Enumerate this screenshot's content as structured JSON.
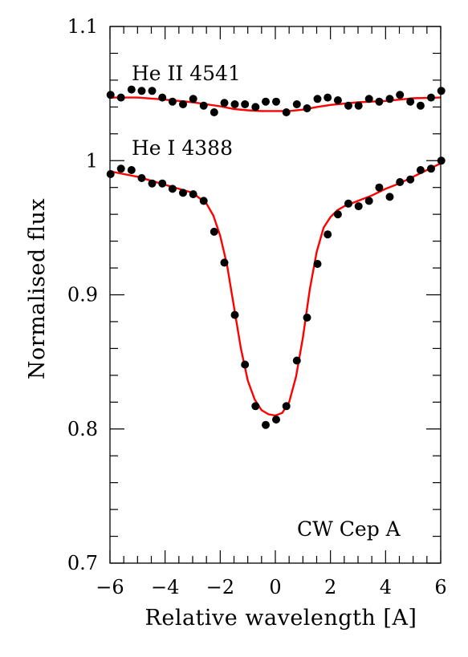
{
  "chart_data": {
    "type": "scatter",
    "title": "",
    "xlabel": "Relative wavelength [A]",
    "ylabel": "Normalised flux",
    "xlim": [
      -6,
      6
    ],
    "ylim": [
      0.7,
      1.1
    ],
    "xticks": [
      -6,
      -4,
      -2,
      0,
      2,
      4,
      6
    ],
    "xtick_labels": [
      "−6",
      "−4",
      "−2",
      "0",
      "2",
      "4",
      "6"
    ],
    "yticks": [
      0.7,
      0.8,
      0.9,
      1.0,
      1.1
    ],
    "ytick_labels": [
      "0.7",
      "0.8",
      "0.9",
      "1",
      "1.1"
    ],
    "annotations": {
      "heii": "He II 4541",
      "hei": "He I 4388",
      "star": "CW Cep A"
    },
    "colors": {
      "observed": "#000000",
      "model": "#ff0000"
    },
    "series": [
      {
        "line": "He II 4541",
        "kind": "observed",
        "x": [
          -5.98,
          -5.6,
          -5.22,
          -4.85,
          -4.47,
          -4.1,
          -3.73,
          -3.35,
          -2.98,
          -2.6,
          -2.22,
          -1.85,
          -1.47,
          -1.1,
          -0.72,
          -0.35,
          0.03,
          0.4,
          0.78,
          1.15,
          1.53,
          1.9,
          2.27,
          2.65,
          3.02,
          3.4,
          3.77,
          4.15,
          4.52,
          4.9,
          5.27,
          5.65,
          6.02
        ],
        "y": [
          1.049,
          1.047,
          1.053,
          1.052,
          1.052,
          1.047,
          1.044,
          1.042,
          1.046,
          1.041,
          1.036,
          1.043,
          1.042,
          1.042,
          1.04,
          1.044,
          1.044,
          1.036,
          1.042,
          1.039,
          1.046,
          1.047,
          1.045,
          1.041,
          1.041,
          1.046,
          1.044,
          1.046,
          1.049,
          1.044,
          1.041,
          1.047,
          1.052
        ]
      },
      {
        "line": "He I 4388",
        "kind": "observed",
        "x": [
          -5.98,
          -5.6,
          -5.22,
          -4.85,
          -4.47,
          -4.1,
          -3.73,
          -3.35,
          -2.98,
          -2.6,
          -2.22,
          -1.85,
          -1.47,
          -1.1,
          -0.72,
          -0.35,
          0.03,
          0.4,
          0.78,
          1.15,
          1.53,
          1.9,
          2.27,
          2.65,
          3.02,
          3.4,
          3.77,
          4.15,
          4.52,
          4.9,
          5.27,
          5.65,
          6.02
        ],
        "y": [
          0.99,
          0.994,
          0.993,
          0.987,
          0.983,
          0.983,
          0.979,
          0.976,
          0.975,
          0.97,
          0.947,
          0.924,
          0.885,
          0.848,
          0.817,
          0.803,
          0.807,
          0.817,
          0.851,
          0.883,
          0.923,
          0.945,
          0.96,
          0.968,
          0.966,
          0.97,
          0.98,
          0.973,
          0.984,
          0.986,
          0.993,
          0.994,
          1.0
        ]
      },
      {
        "line": "He II 4541",
        "kind": "model",
        "x": [
          -6,
          -5,
          -4,
          -3,
          -2,
          -1.5,
          -1,
          -0.5,
          0,
          0.5,
          1,
          1.5,
          2,
          3,
          4,
          5,
          6
        ],
        "y": [
          1.047,
          1.047,
          1.0455,
          1.0435,
          1.0405,
          1.0385,
          1.0375,
          1.037,
          1.037,
          1.037,
          1.038,
          1.04,
          1.0415,
          1.0435,
          1.0445,
          1.0465,
          1.047
        ]
      },
      {
        "line": "He I 4388",
        "kind": "model",
        "x": [
          -6,
          -5.5,
          -5,
          -4.5,
          -4,
          -3.5,
          -3,
          -2.5,
          -2.25,
          -2,
          -1.75,
          -1.5,
          -1.25,
          -1,
          -0.75,
          -0.5,
          -0.25,
          0,
          0.25,
          0.5,
          0.75,
          1,
          1.25,
          1.5,
          1.75,
          2,
          2.25,
          2.5,
          3,
          3.5,
          4,
          4.5,
          5,
          5.5,
          6
        ],
        "y": [
          0.992,
          0.99,
          0.988,
          0.985,
          0.982,
          0.979,
          0.976,
          0.968,
          0.959,
          0.944,
          0.922,
          0.891,
          0.86,
          0.836,
          0.822,
          0.814,
          0.811,
          0.81,
          0.812,
          0.82,
          0.839,
          0.868,
          0.904,
          0.932,
          0.95,
          0.958,
          0.963,
          0.966,
          0.97,
          0.974,
          0.979,
          0.983,
          0.988,
          0.993,
          0.998
        ]
      }
    ]
  }
}
